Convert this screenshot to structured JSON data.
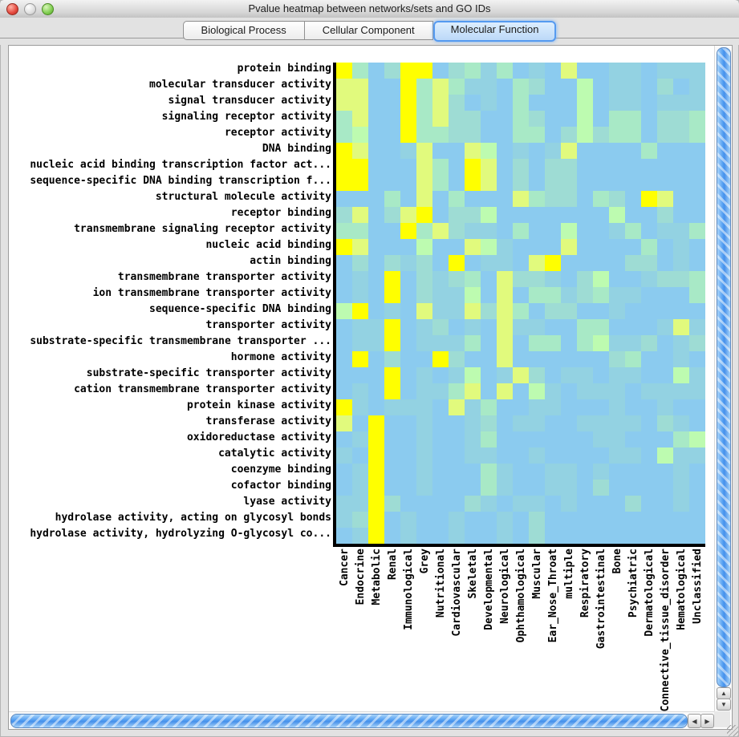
{
  "window": {
    "title": "Pvalue heatmap between networks/sets and GO IDs"
  },
  "tabs": [
    {
      "label": "Biological Process",
      "selected": false
    },
    {
      "label": "Cellular Component",
      "selected": false
    },
    {
      "label": "Molecular Function",
      "selected": true
    }
  ],
  "scrollbars": {
    "up_glyph": "▲",
    "down_glyph": "▼",
    "left_glyph": "◀",
    "right_glyph": "▶"
  },
  "chart_data": {
    "type": "heatmap",
    "title": "Pvalue heatmap between networks/sets and GO IDs",
    "rows": [
      "protein binding",
      "molecular transducer activity",
      "signal transducer activity",
      "signaling receptor activity",
      "receptor activity",
      "DNA binding",
      "nucleic acid binding transcription factor act...",
      "sequence-specific DNA binding transcription f...",
      "structural molecule activity",
      "receptor binding",
      "transmembrane signaling receptor activity",
      "nucleic acid binding",
      "actin binding",
      "transmembrane transporter activity",
      "ion transmembrane transporter activity",
      "sequence-specific DNA binding",
      "transporter activity",
      "substrate-specific transmembrane transporter ...",
      "hormone activity",
      "substrate-specific transporter activity",
      "cation transmembrane transporter activity",
      "protein kinase activity",
      "transferase activity",
      "oxidoreductase activity",
      "catalytic activity",
      "coenzyme binding",
      "cofactor binding",
      "lyase activity",
      "hydrolase activity, acting on glycosyl bonds",
      "hydrolase activity, hydrolyzing O-glycosyl co..."
    ],
    "columns": [
      "Cancer",
      "Endocrine",
      "Metabolic",
      "Renal",
      "Immunological",
      "Grey",
      "Nutritional",
      "Cardiovascular",
      "Skeletal",
      "Developmental",
      "Neurological",
      "Ophthamological",
      "Muscular",
      "Ear_Nose_Throat",
      "multiple",
      "Respiratory",
      "Gastrointestinal",
      "Bone",
      "Psychiatric",
      "Dermatological",
      "Connective_tissue_disorder",
      "Hematological",
      "Unclassified"
    ],
    "palette": {
      "Y": "#ffff00",
      "y": "#e1fa7d",
      "G": "#bdfbb0",
      "g": "#a8e9c6",
      "c": "#9edcd4",
      "t": "#93d2e2",
      "B": "#8bcbef"
    },
    "palette_meaning": "Y = lowest p-value (strongest), then y, G, g, c, t; B = background / weakest",
    "cells": [
      "YgBcYYBcgtgBtByBBttBttt",
      "yyBBYgygttBgcBBGBttBcBt",
      "yyBBYgycBtBgBBBGBttBttt",
      "gyBBYgyccBBgcBBGBggBccg",
      "gGBBYggccBBggBcGcggBccg",
      "YyBBtyBByGBtBtyBBBBgBBB",
      "YYBBBygBYyBcBccBBBBBBBB",
      "YYBBBygBYyBcBccBBBBBBBB",
      "BBBgByBgBBBygccBgcBYyBB",
      "cyBcyYBccGBBBBBBBGBBcBB",
      "ggBBYgycttBgBBGBBtgBttg",
      "YyBBBGBByGtBBByBBBBgBtB",
      "BcBctcBYBttByYBBBBccBtB",
      "BtBYBctcgBycctBcGBBtccg",
      "BtBYBcttGByBggtcgttBBBg",
      "GYBtByttycygBccBBtBBBBB",
      "BttYBtcBtByttBBggBBBtyt",
      "BttYBtttgByBggBgGttcBtc",
      "BYBcBBYcBByBBBBBBcgBBtB",
      "BBBYBtBtGBtycBttBttBBGt",
      "BtBYBttgyByBGtBtttBtttt",
      "YtBtttBytgBBttBBBtBBtBB",
      "yBYBBtBBtcBttBBttttBctB",
      "BtYBBtBBtgBBBBBBttBBBgG",
      "tBYBBtBBttBBtBBBBttBGtt",
      "BtYBBtBBBgtBBttBtBBBBtB",
      "BtYBBtBBBgtBBttBcBBBBtB",
      "ttYcBBBBctBttBtBBBcBBtB",
      "tcYBtBBtBBtBcBBBBBBBBBB",
      "BtYBtBBtBBtBcBBBBBBBBBB"
    ]
  }
}
